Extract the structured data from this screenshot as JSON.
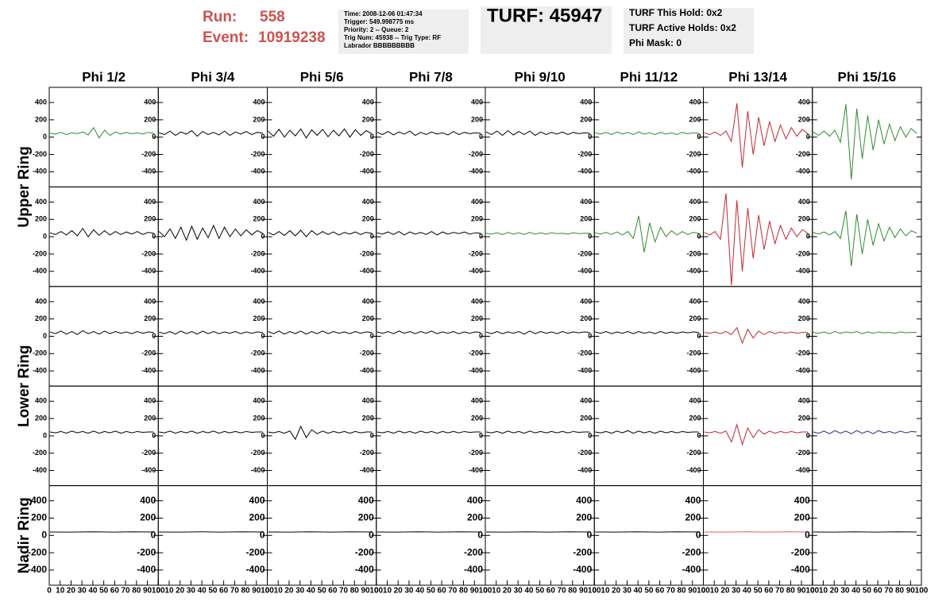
{
  "header": {
    "run_label": "Run:",
    "run": "558",
    "event_label": "Event:",
    "event": "10919238",
    "info": [
      "Time: 2008-12-06 01:47:34",
      "Trigger: 549.998775 ms",
      "Priority: 2 -- Queue: 2",
      "Trig Num: 45938 -- Trig Type: RF",
      "Labrador BBBBBBBBB"
    ],
    "turf": "TURF: 45947",
    "holds": [
      "TURF This Hold: 0x2",
      "TURF Active Holds: 0x2",
      "Phi Mask: 0"
    ]
  },
  "grid": {
    "columns": [
      "Phi 1/2",
      "Phi 3/4",
      "Phi 5/6",
      "Phi 7/8",
      "Phi 9/10",
      "Phi 11/12",
      "Phi 13/14",
      "Phi 15/16"
    ],
    "rings": [
      "Upper Ring",
      "Lower Ring",
      "Nadir Ring"
    ],
    "ylim": [
      -575,
      575
    ],
    "yticks": [
      -400,
      -200,
      0,
      200,
      400
    ],
    "xlim": [
      0,
      100
    ],
    "xticks": [
      0,
      10,
      20,
      30,
      40,
      50,
      60,
      70,
      80,
      90,
      100
    ],
    "rows": [
      [
        {
          "color": "#2e8b2e",
          "values": [
            45,
            35,
            55,
            30,
            50,
            40,
            60,
            25,
            110,
            -10,
            80,
            20,
            60,
            35,
            55,
            40,
            50,
            35,
            55,
            45
          ]
        },
        {
          "color": "#000000",
          "values": [
            50,
            30,
            70,
            20,
            60,
            35,
            75,
            10,
            65,
            30,
            55,
            25,
            70,
            20,
            60,
            35,
            65,
            30,
            55,
            45
          ]
        },
        {
          "color": "#000000",
          "values": [
            70,
            10,
            90,
            0,
            80,
            15,
            95,
            -10,
            85,
            20,
            90,
            5,
            80,
            15,
            95,
            0,
            85,
            20,
            75,
            40
          ]
        },
        {
          "color": "#000000",
          "values": [
            55,
            30,
            65,
            25,
            60,
            35,
            70,
            20,
            55,
            30,
            60,
            35,
            50,
            25,
            65,
            30,
            55,
            40,
            50,
            45
          ]
        },
        {
          "color": "#000000",
          "values": [
            60,
            30,
            70,
            20,
            75,
            25,
            65,
            30,
            70,
            20,
            60,
            30,
            55,
            35,
            60,
            30,
            55,
            40,
            50,
            45
          ]
        },
        {
          "color": "#2e8b2e",
          "values": [
            50,
            35,
            55,
            30,
            60,
            35,
            55,
            30,
            60,
            35,
            50,
            30,
            55,
            35,
            50,
            30,
            55,
            40,
            50,
            45
          ]
        },
        {
          "color": "#c0282c",
          "values": [
            50,
            30,
            60,
            20,
            70,
            -50,
            390,
            -350,
            300,
            -200,
            230,
            -100,
            180,
            -50,
            140,
            -20,
            110,
            10,
            90,
            40
          ]
        },
        {
          "color": "#2e8b2e",
          "values": [
            60,
            20,
            70,
            10,
            80,
            -60,
            380,
            -490,
            330,
            -250,
            250,
            -150,
            200,
            -80,
            150,
            -40,
            120,
            0,
            100,
            40
          ]
        }
      ],
      [
        {
          "color": "#000000",
          "values": [
            45,
            25,
            60,
            20,
            70,
            10,
            95,
            0,
            80,
            15,
            70,
            20,
            60,
            25,
            55,
            30,
            60,
            25,
            50,
            40
          ]
        },
        {
          "color": "#000000",
          "values": [
            60,
            0,
            90,
            -20,
            110,
            -40,
            120,
            -30,
            100,
            -10,
            130,
            -20,
            110,
            0,
            90,
            10,
            80,
            20,
            70,
            40
          ]
        },
        {
          "color": "#000000",
          "values": [
            50,
            20,
            60,
            15,
            70,
            10,
            75,
            0,
            70,
            20,
            60,
            25,
            55,
            20,
            50,
            30,
            55,
            25,
            50,
            40
          ]
        },
        {
          "color": "#000000",
          "values": [
            45,
            30,
            55,
            25,
            60,
            20,
            55,
            30,
            50,
            25,
            60,
            20,
            55,
            30,
            50,
            35,
            55,
            30,
            45,
            40
          ]
        },
        {
          "color": "#2e8b2e",
          "values": [
            40,
            30,
            45,
            25,
            50,
            30,
            45,
            25,
            50,
            30,
            45,
            30,
            45,
            35,
            40,
            30,
            45,
            35,
            40,
            40
          ]
        },
        {
          "color": "#2e8b2e",
          "values": [
            45,
            30,
            50,
            25,
            55,
            20,
            60,
            -20,
            240,
            -180,
            160,
            -60,
            110,
            0,
            70,
            20,
            60,
            25,
            50,
            40
          ]
        },
        {
          "color": "#c0282c",
          "values": [
            50,
            20,
            60,
            -30,
            500,
            -560,
            420,
            -400,
            330,
            -250,
            250,
            -150,
            180,
            -80,
            130,
            -30,
            100,
            0,
            80,
            40
          ]
        },
        {
          "color": "#2e8b2e",
          "values": [
            50,
            30,
            55,
            20,
            60,
            -20,
            300,
            -340,
            260,
            -200,
            200,
            -100,
            150,
            -50,
            110,
            -10,
            90,
            10,
            70,
            40
          ]
        }
      ],
      [
        {
          "color": "#000000",
          "values": [
            50,
            30,
            60,
            25,
            55,
            20,
            65,
            30,
            55,
            25,
            60,
            30,
            55,
            35,
            50,
            30,
            55,
            35,
            50,
            45
          ]
        },
        {
          "color": "#000000",
          "values": [
            50,
            30,
            55,
            25,
            60,
            30,
            55,
            25,
            60,
            30,
            55,
            30,
            50,
            35,
            55,
            30,
            50,
            35,
            50,
            45
          ]
        },
        {
          "color": "#000000",
          "values": [
            55,
            30,
            60,
            25,
            55,
            30,
            60,
            25,
            55,
            30,
            60,
            30,
            55,
            35,
            50,
            30,
            55,
            35,
            50,
            45
          ]
        },
        {
          "color": "#000000",
          "values": [
            50,
            35,
            55,
            30,
            60,
            35,
            55,
            30,
            55,
            35,
            60,
            30,
            50,
            35,
            55,
            30,
            50,
            35,
            50,
            45
          ]
        },
        {
          "color": "#000000",
          "values": [
            50,
            30,
            55,
            30,
            50,
            35,
            55,
            25,
            60,
            30,
            55,
            35,
            50,
            30,
            55,
            35,
            50,
            40,
            50,
            45
          ]
        },
        {
          "color": "#000000",
          "values": [
            50,
            35,
            55,
            30,
            50,
            35,
            55,
            30,
            55,
            35,
            50,
            30,
            55,
            35,
            50,
            35,
            50,
            40,
            50,
            45
          ]
        },
        {
          "color": "#c0282c",
          "values": [
            45,
            35,
            50,
            30,
            55,
            20,
            100,
            -80,
            80,
            -20,
            60,
            20,
            55,
            30,
            50,
            35,
            50,
            35,
            45,
            45
          ]
        },
        {
          "color": "#2e8b2e",
          "values": [
            45,
            35,
            50,
            30,
            55,
            35,
            50,
            40,
            55,
            30,
            50,
            35,
            50,
            40,
            45,
            35,
            50,
            40,
            45,
            45
          ]
        }
      ],
      [
        {
          "color": "#000000",
          "values": [
            45,
            35,
            50,
            30,
            55,
            35,
            50,
            30,
            55,
            30,
            50,
            35,
            55,
            30,
            50,
            35,
            50,
            40,
            45,
            45
          ]
        },
        {
          "color": "#000000",
          "values": [
            45,
            35,
            55,
            30,
            50,
            35,
            55,
            30,
            50,
            35,
            55,
            30,
            50,
            35,
            50,
            35,
            50,
            40,
            45,
            45
          ]
        },
        {
          "color": "#000000",
          "values": [
            45,
            35,
            50,
            30,
            55,
            -40,
            110,
            -20,
            70,
            25,
            55,
            30,
            50,
            35,
            50,
            30,
            50,
            35,
            45,
            45
          ]
        },
        {
          "color": "#000000",
          "values": [
            45,
            35,
            50,
            30,
            55,
            35,
            50,
            30,
            55,
            35,
            50,
            30,
            50,
            35,
            50,
            35,
            50,
            40,
            45,
            45
          ]
        },
        {
          "color": "#000000",
          "values": [
            45,
            35,
            50,
            30,
            55,
            35,
            50,
            30,
            55,
            35,
            50,
            35,
            50,
            35,
            50,
            35,
            50,
            40,
            45,
            45
          ]
        },
        {
          "color": "#000000",
          "values": [
            45,
            35,
            50,
            30,
            55,
            35,
            60,
            30,
            55,
            35,
            50,
            30,
            55,
            35,
            50,
            35,
            50,
            40,
            45,
            45
          ]
        },
        {
          "color": "#c0282c",
          "values": [
            45,
            35,
            50,
            30,
            55,
            -70,
            130,
            -100,
            90,
            -20,
            70,
            20,
            55,
            30,
            50,
            35,
            50,
            35,
            45,
            45
          ]
        },
        {
          "color": "#2a2a8a",
          "values": [
            45,
            30,
            55,
            25,
            60,
            30,
            55,
            25,
            60,
            30,
            55,
            25,
            60,
            35,
            50,
            30,
            55,
            35,
            50,
            45
          ]
        }
      ],
      [
        {
          "color": "#000000",
          "values": [
            40,
            38,
            42,
            38,
            42,
            40
          ]
        },
        {
          "color": "#000000",
          "values": [
            40,
            38,
            42,
            38,
            42,
            40
          ]
        },
        {
          "color": "#000000",
          "values": [
            40,
            38,
            42,
            38,
            42,
            40
          ]
        },
        {
          "color": "#000000",
          "values": [
            40,
            38,
            42,
            38,
            42,
            40
          ]
        },
        {
          "color": "#000000",
          "values": [
            40,
            38,
            42,
            38,
            42,
            40
          ]
        },
        {
          "color": "#000000",
          "values": [
            40,
            38,
            42,
            38,
            42,
            40
          ]
        },
        {
          "color": "#e06060",
          "values": [
            40,
            38,
            42,
            38,
            42,
            40
          ]
        },
        {
          "color": "#000000",
          "values": [
            40,
            38,
            42,
            38,
            42,
            40
          ]
        }
      ]
    ]
  }
}
